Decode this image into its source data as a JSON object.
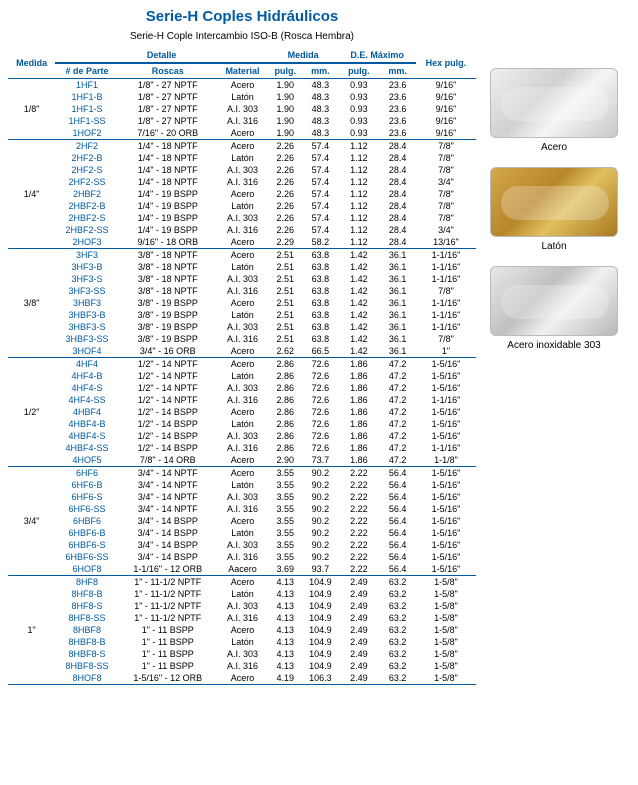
{
  "title": "Serie-H Coples Hidráulicos",
  "subtitle": "Serie-H Cople Intercambio ISO-B (Rosca Hembra)",
  "headers": {
    "medida": "Medida",
    "detalle": "Detalle",
    "parte": "# de Parte",
    "roscas": "Roscas",
    "material": "Material",
    "medida2": "Medida",
    "pulg": "pulg.",
    "mm": "mm.",
    "de": "D.E. Máximo",
    "hex": "Hex pulg."
  },
  "images": [
    {
      "label": "Acero",
      "cls": "steel"
    },
    {
      "label": "Latón",
      "cls": "brass"
    },
    {
      "label": "Acero inoxidable 303",
      "cls": "ss303"
    }
  ],
  "groups": [
    {
      "size": "1/8\"",
      "rows": [
        {
          "p": "1HF1",
          "t": "1/8\" - 27 NPTF",
          "m": "Acero",
          "in": "1.90",
          "mm": "48.3",
          "d": "0.93",
          "dm": "23.6",
          "h": "9/16\""
        },
        {
          "p": "1HF1-B",
          "t": "1/8\" - 27 NPTF",
          "m": "Latón",
          "in": "1.90",
          "mm": "48.3",
          "d": "0.93",
          "dm": "23.6",
          "h": "9/16\""
        },
        {
          "p": "1HF1-S",
          "t": "1/8\" - 27 NPTF",
          "m": "A.I. 303",
          "in": "1.90",
          "mm": "48.3",
          "d": "0.93",
          "dm": "23.6",
          "h": "9/16\""
        },
        {
          "p": "1HF1-SS",
          "t": "1/8\" - 27 NPTF",
          "m": "A.I. 316",
          "in": "1.90",
          "mm": "48.3",
          "d": "0.93",
          "dm": "23.6",
          "h": "9/16\""
        },
        {
          "p": "1HOF2",
          "t": "7/16\" - 20 ORB",
          "m": "Acero",
          "in": "1.90",
          "mm": "48.3",
          "d": "0.93",
          "dm": "23.6",
          "h": "9/16\""
        }
      ]
    },
    {
      "size": "1/4\"",
      "rows": [
        {
          "p": "2HF2",
          "t": "1/4\" - 18 NPTF",
          "m": "Acero",
          "in": "2.26",
          "mm": "57.4",
          "d": "1.12",
          "dm": "28.4",
          "h": "7/8\""
        },
        {
          "p": "2HF2-B",
          "t": "1/4\" - 18 NPTF",
          "m": "Latón",
          "in": "2.26",
          "mm": "57.4",
          "d": "1.12",
          "dm": "28.4",
          "h": "7/8\""
        },
        {
          "p": "2HF2-S",
          "t": "1/4\" - 18 NPTF",
          "m": "A.I. 303",
          "in": "2.26",
          "mm": "57.4",
          "d": "1.12",
          "dm": "28.4",
          "h": "7/8\""
        },
        {
          "p": "2HF2-SS",
          "t": "1/4\" - 18 NPTF",
          "m": "A.I. 316",
          "in": "2.26",
          "mm": "57.4",
          "d": "1.12",
          "dm": "28.4",
          "h": "3/4\""
        },
        {
          "p": "2HBF2",
          "t": "1/4\" - 19 BSPP",
          "m": "Acero",
          "in": "2.26",
          "mm": "57.4",
          "d": "1.12",
          "dm": "28.4",
          "h": "7/8\""
        },
        {
          "p": "2HBF2-B",
          "t": "1/4\" - 19 BSPP",
          "m": "Latón",
          "in": "2.26",
          "mm": "57.4",
          "d": "1.12",
          "dm": "28.4",
          "h": "7/8\""
        },
        {
          "p": "2HBF2-S",
          "t": "1/4\" - 19 BSPP",
          "m": "A.I. 303",
          "in": "2.26",
          "mm": "57.4",
          "d": "1.12",
          "dm": "28.4",
          "h": "7/8\""
        },
        {
          "p": "2HBF2-SS",
          "t": "1/4\" - 19 BSPP",
          "m": "A.I. 316",
          "in": "2.26",
          "mm": "57.4",
          "d": "1.12",
          "dm": "28.4",
          "h": "3/4\""
        },
        {
          "p": "2HOF3",
          "t": "9/16\" - 18 ORB",
          "m": "Acero",
          "in": "2.29",
          "mm": "58.2",
          "d": "1.12",
          "dm": "28.4",
          "h": "13/16\""
        }
      ]
    },
    {
      "size": "3/8\"",
      "rows": [
        {
          "p": "3HF3",
          "t": "3/8\" - 18 NPTF",
          "m": "Acero",
          "in": "2.51",
          "mm": "63.8",
          "d": "1.42",
          "dm": "36.1",
          "h": "1-1/16\""
        },
        {
          "p": "3HF3-B",
          "t": "3/8\" - 18 NPTF",
          "m": "Latón",
          "in": "2.51",
          "mm": "63.8",
          "d": "1.42",
          "dm": "36.1",
          "h": "1-1/16\""
        },
        {
          "p": "3HF3-S",
          "t": "3/8\" - 18 NPTF",
          "m": "A.I. 303",
          "in": "2.51",
          "mm": "63.8",
          "d": "1.42",
          "dm": "36.1",
          "h": "1-1/16\""
        },
        {
          "p": "3HF3-SS",
          "t": "3/8\" - 18 NPTF",
          "m": "A.I. 316",
          "in": "2.51",
          "mm": "63.8",
          "d": "1.42",
          "dm": "36.1",
          "h": "7/8\""
        },
        {
          "p": "3HBF3",
          "t": "3/8\" - 19 BSPP",
          "m": "Acero",
          "in": "2.51",
          "mm": "63.8",
          "d": "1.42",
          "dm": "36.1",
          "h": "1-1/16\""
        },
        {
          "p": "3HBF3-B",
          "t": "3/8\" - 19 BSPP",
          "m": "Latón",
          "in": "2.51",
          "mm": "63.8",
          "d": "1.42",
          "dm": "36.1",
          "h": "1-1/16\""
        },
        {
          "p": "3HBF3-S",
          "t": "3/8\" - 19 BSPP",
          "m": "A.I. 303",
          "in": "2.51",
          "mm": "63.8",
          "d": "1.42",
          "dm": "36.1",
          "h": "1-1/16\""
        },
        {
          "p": "3HBF3-SS",
          "t": "3/8\" - 19 BSPP",
          "m": "A.I. 316",
          "in": "2.51",
          "mm": "63.8",
          "d": "1.42",
          "dm": "36.1",
          "h": "7/8\""
        },
        {
          "p": "3HOF4",
          "t": "3/4\" - 16 ORB",
          "m": "Acero",
          "in": "2.62",
          "mm": "66.5",
          "d": "1.42",
          "dm": "36.1",
          "h": "1\""
        }
      ]
    },
    {
      "size": "1/2\"",
      "rows": [
        {
          "p": "4HF4",
          "t": "1/2\" - 14 NPTF",
          "m": "Acero",
          "in": "2.86",
          "mm": "72.6",
          "d": "1.86",
          "dm": "47.2",
          "h": "1-5/16\""
        },
        {
          "p": "4HF4-B",
          "t": "1/2\" - 14 NPTF",
          "m": "Latón",
          "in": "2.86",
          "mm": "72.6",
          "d": "1.86",
          "dm": "47.2",
          "h": "1-5/16\""
        },
        {
          "p": "4HF4-S",
          "t": "1/2\" - 14 NPTF",
          "m": "A.I. 303",
          "in": "2.86",
          "mm": "72.6",
          "d": "1.86",
          "dm": "47.2",
          "h": "1-5/16\""
        },
        {
          "p": "4HF4-SS",
          "t": "1/2\" - 14 NPTF",
          "m": "A.I. 316",
          "in": "2.86",
          "mm": "72.6",
          "d": "1.86",
          "dm": "47.2",
          "h": "1-1/16\""
        },
        {
          "p": "4HBF4",
          "t": "1/2\" - 14 BSPP",
          "m": "Acero",
          "in": "2.86",
          "mm": "72.6",
          "d": "1.86",
          "dm": "47.2",
          "h": "1-5/16\""
        },
        {
          "p": "4HBF4-B",
          "t": "1/2\" - 14 BSPP",
          "m": "Latón",
          "in": "2.86",
          "mm": "72.6",
          "d": "1.86",
          "dm": "47.2",
          "h": "1-5/16\""
        },
        {
          "p": "4HBF4-S",
          "t": "1/2\" - 14 BSPP",
          "m": "A.I. 303",
          "in": "2.86",
          "mm": "72.6",
          "d": "1.86",
          "dm": "47.2",
          "h": "1-5/16\""
        },
        {
          "p": "4HBF4-SS",
          "t": "1/2\" - 14 BSPP",
          "m": "A.I. 316",
          "in": "2.86",
          "mm": "72.6",
          "d": "1.86",
          "dm": "47.2",
          "h": "1-1/16\""
        },
        {
          "p": "4HOF5",
          "t": "7/8\" - 14 ORB",
          "m": "Acero",
          "in": "2.90",
          "mm": "73.7",
          "d": "1.86",
          "dm": "47.2",
          "h": "1-1/8\""
        }
      ]
    },
    {
      "size": "3/4\"",
      "rows": [
        {
          "p": "6HF6",
          "t": "3/4\" - 14 NPTF",
          "m": "Acero",
          "in": "3.55",
          "mm": "90.2",
          "d": "2.22",
          "dm": "56.4",
          "h": "1-5/16\""
        },
        {
          "p": "6HF6-B",
          "t": "3/4\" - 14 NPTF",
          "m": "Latón",
          "in": "3.55",
          "mm": "90.2",
          "d": "2.22",
          "dm": "56.4",
          "h": "1-5/16\""
        },
        {
          "p": "6HF6-S",
          "t": "3/4\" - 14 NPTF",
          "m": "A.I. 303",
          "in": "3.55",
          "mm": "90.2",
          "d": "2.22",
          "dm": "56.4",
          "h": "1-5/16\""
        },
        {
          "p": "6HF6-SS",
          "t": "3/4\" - 14 NPTF",
          "m": "A.I. 316",
          "in": "3.55",
          "mm": "90.2",
          "d": "2.22",
          "dm": "56.4",
          "h": "1-5/16\""
        },
        {
          "p": "6HBF6",
          "t": "3/4\" - 14 BSPP",
          "m": "Acero",
          "in": "3.55",
          "mm": "90.2",
          "d": "2.22",
          "dm": "56.4",
          "h": "1-5/16\""
        },
        {
          "p": "6HBF6-B",
          "t": "3/4\" - 14 BSPP",
          "m": "Latón",
          "in": "3.55",
          "mm": "90.2",
          "d": "2.22",
          "dm": "56.4",
          "h": "1-5/16\""
        },
        {
          "p": "6HBF6-S",
          "t": "3/4\" - 14 BSPP",
          "m": "A.I. 303",
          "in": "3.55",
          "mm": "90.2",
          "d": "2.22",
          "dm": "56.4",
          "h": "1-5/16\""
        },
        {
          "p": "6HBF6-SS",
          "t": "3/4\" - 14 BSPP",
          "m": "A.I. 316",
          "in": "3.55",
          "mm": "90.2",
          "d": "2.22",
          "dm": "56.4",
          "h": "1-5/16\""
        },
        {
          "p": "6HOF8",
          "t": "1-1/16\" - 12 ORB",
          "m": "Aacero",
          "in": "3.69",
          "mm": "93.7",
          "d": "2.22",
          "dm": "56.4",
          "h": "1-5/16\""
        }
      ]
    },
    {
      "size": "1\"",
      "rows": [
        {
          "p": "8HF8",
          "t": "1\" - 11-1/2 NPTF",
          "m": "Acero",
          "in": "4.13",
          "mm": "104.9",
          "d": "2.49",
          "dm": "63.2",
          "h": "1-5/8\""
        },
        {
          "p": "8HF8-B",
          "t": "1\" - 11-1/2 NPTF",
          "m": "Latón",
          "in": "4.13",
          "mm": "104.9",
          "d": "2.49",
          "dm": "63.2",
          "h": "1-5/8\""
        },
        {
          "p": "8HF8-S",
          "t": "1\" - 11-1/2 NPTF",
          "m": "A.I. 303",
          "in": "4.13",
          "mm": "104.9",
          "d": "2.49",
          "dm": "63.2",
          "h": "1-5/8\""
        },
        {
          "p": "8HF8-SS",
          "t": "1\" - 11-1/2 NPTF",
          "m": "A.I. 316",
          "in": "4.13",
          "mm": "104.9",
          "d": "2.49",
          "dm": "63.2",
          "h": "1-5/8\""
        },
        {
          "p": "8HBF8",
          "t": "1\" - 11 BSPP",
          "m": "Acero",
          "in": "4.13",
          "mm": "104.9",
          "d": "2.49",
          "dm": "63.2",
          "h": "1-5/8\""
        },
        {
          "p": "8HBF8-B",
          "t": "1\" - 11 BSPP",
          "m": "Latón",
          "in": "4.13",
          "mm": "104.9",
          "d": "2.49",
          "dm": "63.2",
          "h": "1-5/8\""
        },
        {
          "p": "8HBF8-S",
          "t": "1\" - 11 BSPP",
          "m": "A.I. 303",
          "in": "4.13",
          "mm": "104.9",
          "d": "2.49",
          "dm": "63.2",
          "h": "1-5/8\""
        },
        {
          "p": "8HBF8-SS",
          "t": "1\" - 11 BSPP",
          "m": "A.I. 316",
          "in": "4.13",
          "mm": "104.9",
          "d": "2.49",
          "dm": "63.2",
          "h": "1-5/8\""
        },
        {
          "p": "8HOF8",
          "t": "1-5/16\" - 12 ORB",
          "m": "Acero",
          "in": "4.19",
          "mm": "106.3",
          "d": "2.49",
          "dm": "63.2",
          "h": "1-5/8\""
        }
      ]
    }
  ]
}
